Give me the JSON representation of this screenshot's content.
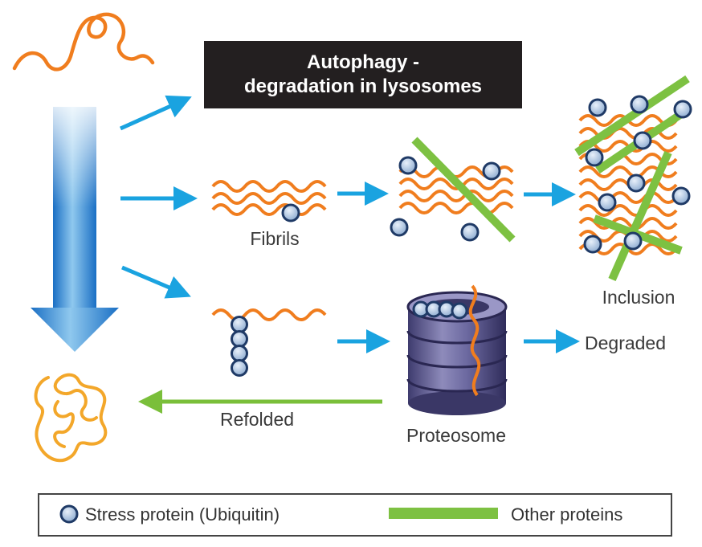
{
  "title": {
    "line1": "Autophagy -",
    "line2": "degradation in lysosomes"
  },
  "labels": {
    "fibrils": "Fibrils",
    "inclusion": "Inclusion",
    "degraded": "Degraded",
    "refolded": "Refolded",
    "proteosome": "Proteosome"
  },
  "legend": {
    "stress_protein": "Stress protein (Ubiquitin)",
    "other_proteins": "Other proteins"
  },
  "colors": {
    "protein_chain": "#f07d1e",
    "refolded_chain": "#f3a72a",
    "arrow_blue": "#1aa3e0",
    "arrow_green": "#7abf3a",
    "other_protein_bar": "#7dc142",
    "ubiquitin_fill": "#9db9d8",
    "title_box": "#231f20",
    "proteosome": "#6d6a96"
  }
}
